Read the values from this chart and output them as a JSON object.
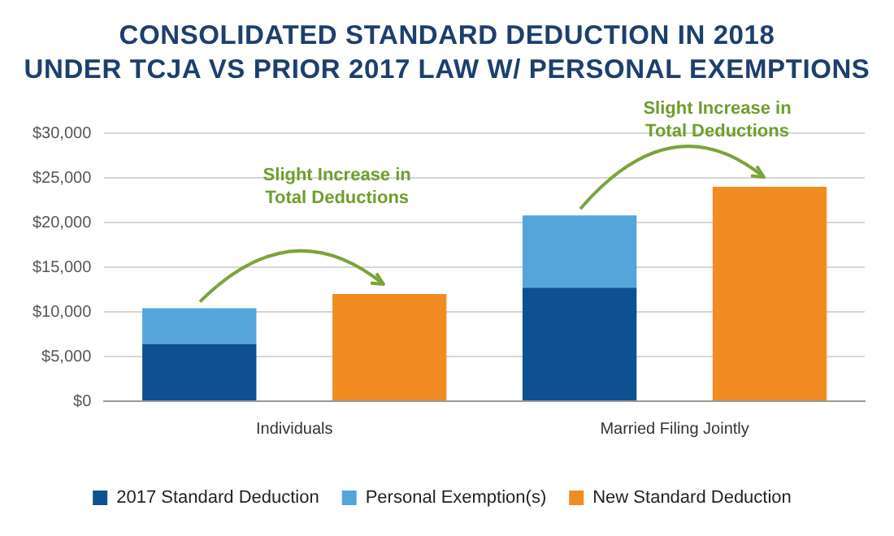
{
  "chart_data": {
    "type": "bar",
    "title": "CONSOLIDATED STANDARD DEDUCTION IN 2018\nUNDER TCJA VS PRIOR 2017 LAW W/ PERSONAL EXEMPTIONS",
    "categories": [
      "Individuals",
      null,
      "Married Filing Jointly",
      null
    ],
    "stacked": true,
    "series": [
      {
        "name": "2017 Standard Deduction",
        "color": "#0d5192",
        "values": [
          6400,
          null,
          12700,
          null
        ]
      },
      {
        "name": "Personal Exemption(s)",
        "color": "#55a5dc",
        "values": [
          4000,
          null,
          8100,
          null
        ]
      },
      {
        "name": "New Standard Deduction",
        "color": "#f18c23",
        "values": [
          null,
          12000,
          null,
          24000
        ]
      }
    ],
    "ylim": [
      0,
      30000
    ],
    "yticks": [
      {
        "value": 0,
        "label": "$0"
      },
      {
        "value": 5000,
        "label": "$5,000"
      },
      {
        "value": 10000,
        "label": "$10,000"
      },
      {
        "value": 15000,
        "label": "$15,000"
      },
      {
        "value": 20000,
        "label": "$20,000"
      },
      {
        "value": 25000,
        "label": "$25,000"
      },
      {
        "value": 30000,
        "label": "$30,000"
      }
    ],
    "grid": "y",
    "legend": "bottom",
    "annotations": [
      "Slight Increase in Total Deductions",
      "Slight Increase in Total Deductions"
    ]
  }
}
